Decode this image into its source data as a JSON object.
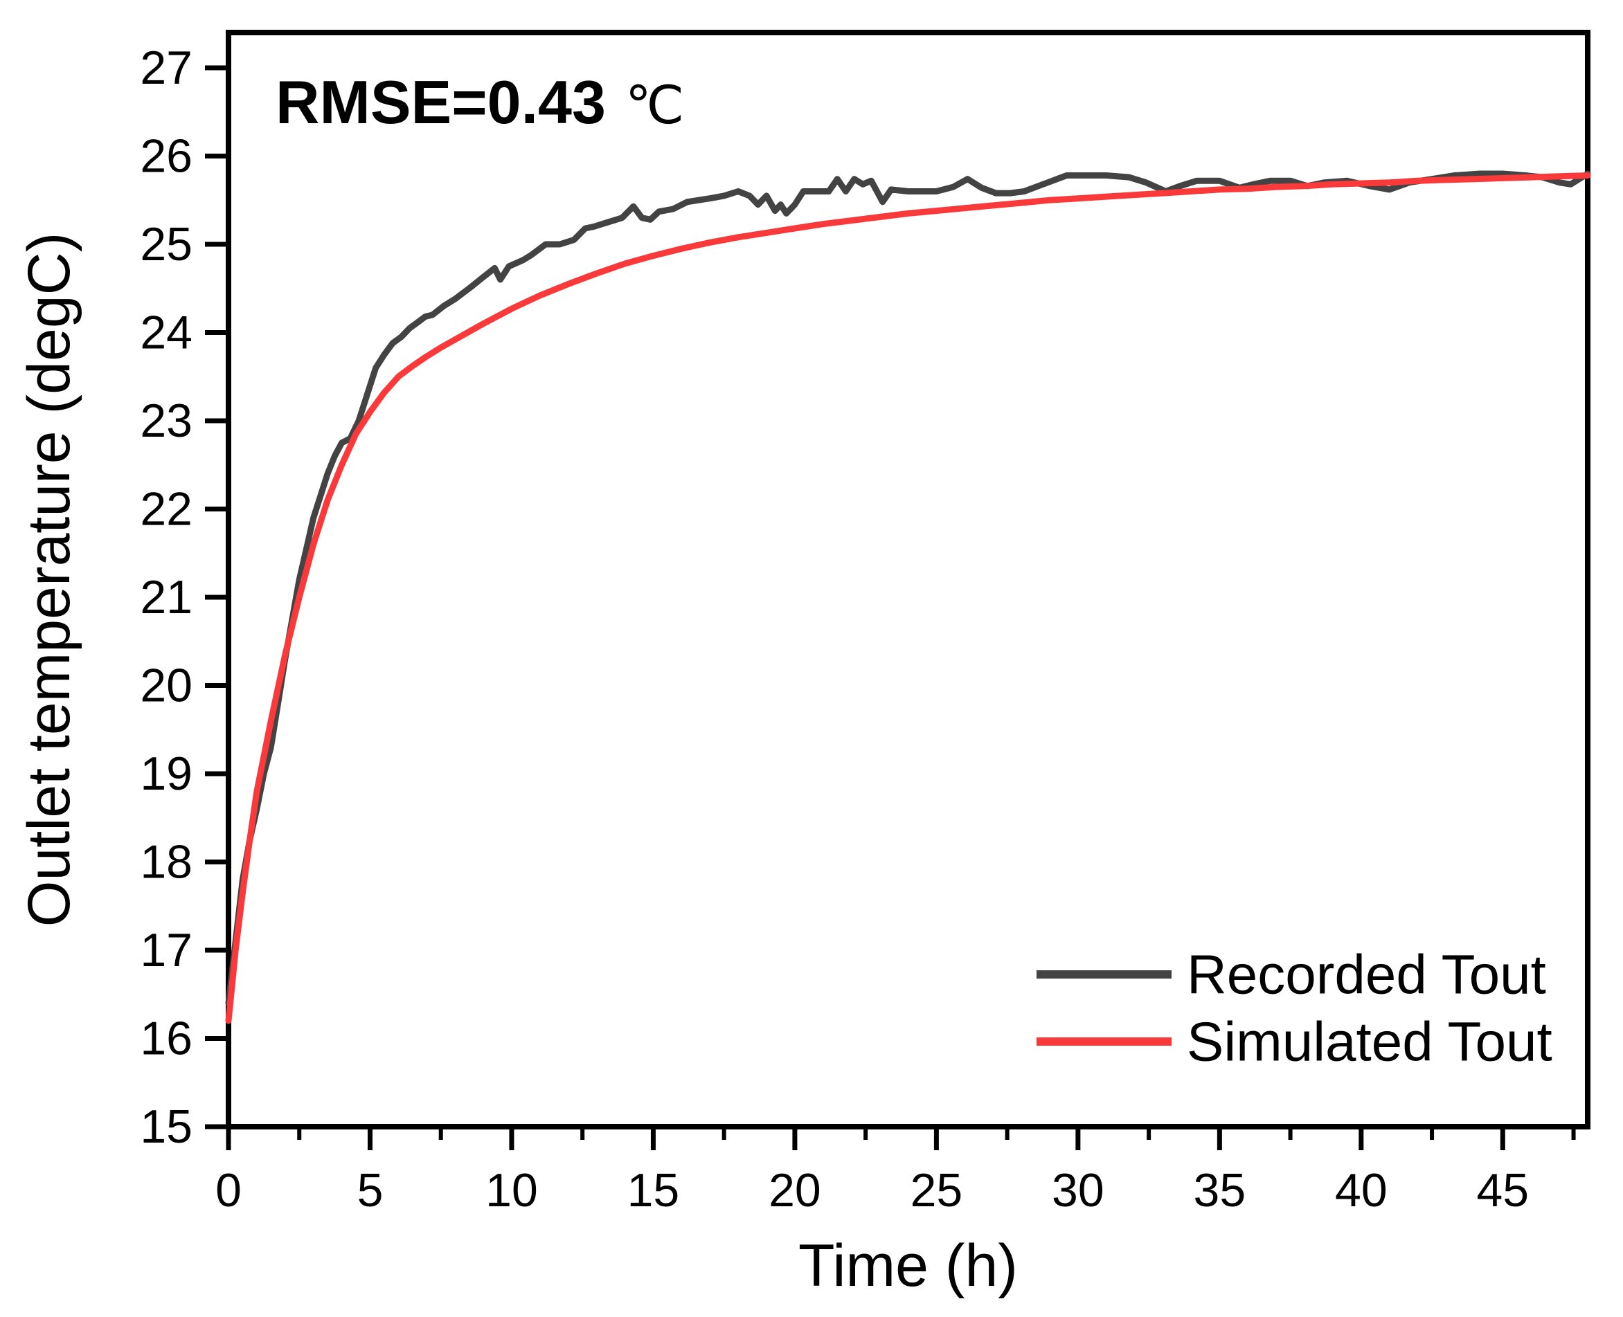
{
  "figure": {
    "annotation": {
      "rmse_label": "RMSE=0.43",
      "unit": "℃"
    },
    "colors": {
      "recorded": "#434343",
      "simulated": "#fa3a3a",
      "axis": "#000000",
      "background": "#ffffff"
    }
  },
  "chart_data": {
    "type": "line",
    "title": "",
    "xlabel": "Time (h)",
    "ylabel": "Outlet temperature (degC)",
    "xlim": [
      0,
      48
    ],
    "ylim": [
      15,
      27.4
    ],
    "grid": false,
    "legend_position": "bottom-right",
    "annotation": "RMSE=0.43 ℃",
    "x_major_ticks": [
      0,
      5,
      10,
      15,
      20,
      25,
      30,
      35,
      40,
      45
    ],
    "x_minor_ticks": [
      2.5,
      7.5,
      12.5,
      17.5,
      22.5,
      27.5,
      32.5,
      37.5,
      42.5,
      47.5
    ],
    "y_major_ticks": [
      27,
      26,
      25,
      24,
      23,
      22,
      21,
      20,
      19,
      18,
      17,
      16,
      15
    ],
    "series": [
      {
        "name": "Recorded Tout",
        "color": "#434343",
        "x": [
          0,
          0.25,
          0.5,
          0.75,
          1,
          1.25,
          1.5,
          1.75,
          2,
          2.25,
          2.5,
          2.75,
          3,
          3.25,
          3.5,
          3.75,
          4,
          4.3,
          4.6,
          4.9,
          5.2,
          5.5,
          5.8,
          6.1,
          6.4,
          6.7,
          6.95,
          7.2,
          7.6,
          8,
          8.5,
          9,
          9.4,
          9.6,
          9.9,
          10.4,
          10.7,
          11.2,
          11.7,
          12.2,
          12.6,
          12.9,
          13.4,
          13.9,
          14.3,
          14.6,
          14.9,
          15.2,
          15.7,
          16.2,
          16.6,
          17,
          17.5,
          18,
          18.4,
          18.7,
          19,
          19.3,
          19.5,
          19.7,
          20,
          20.3,
          20.8,
          21.2,
          21.5,
          21.8,
          22.1,
          22.4,
          22.7,
          23.1,
          23.4,
          24,
          24.5,
          25,
          25.6,
          26.1,
          26.6,
          27.1,
          27.6,
          28.1,
          28.6,
          29.1,
          29.6,
          30.2,
          31,
          31.8,
          32.4,
          33.1,
          33.6,
          34.2,
          35,
          35.7,
          36.2,
          36.8,
          37.5,
          38.1,
          38.7,
          39.5,
          40.3,
          41,
          41.7,
          42.5,
          43.3,
          44.2,
          45,
          45.8,
          46.4,
          47,
          47.4,
          48
        ],
        "y": [
          16.4,
          17.1,
          17.8,
          18.25,
          18.6,
          19.0,
          19.3,
          19.8,
          20.3,
          20.75,
          21.2,
          21.55,
          21.9,
          22.15,
          22.4,
          22.6,
          22.75,
          22.8,
          23.0,
          23.3,
          23.6,
          23.75,
          23.88,
          23.95,
          24.05,
          24.12,
          24.18,
          24.2,
          24.3,
          24.38,
          24.5,
          24.63,
          24.73,
          24.6,
          24.75,
          24.82,
          24.88,
          25.0,
          25.0,
          25.05,
          25.18,
          25.2,
          25.25,
          25.3,
          25.43,
          25.3,
          25.28,
          25.37,
          25.4,
          25.48,
          25.5,
          25.52,
          25.55,
          25.6,
          25.55,
          25.45,
          25.55,
          25.38,
          25.45,
          25.35,
          25.45,
          25.6,
          25.6,
          25.6,
          25.74,
          25.6,
          25.74,
          25.68,
          25.72,
          25.48,
          25.62,
          25.6,
          25.6,
          25.6,
          25.65,
          25.74,
          25.64,
          25.58,
          25.58,
          25.6,
          25.66,
          25.72,
          25.78,
          25.78,
          25.78,
          25.76,
          25.7,
          25.6,
          25.66,
          25.72,
          25.72,
          25.64,
          25.68,
          25.72,
          25.72,
          25.66,
          25.7,
          25.72,
          25.66,
          25.62,
          25.7,
          25.74,
          25.78,
          25.8,
          25.8,
          25.78,
          25.76,
          25.7,
          25.68,
          25.8
        ]
      },
      {
        "name": "Simulated Tout",
        "color": "#fa3a3a",
        "x": [
          0,
          0.25,
          0.5,
          0.75,
          1,
          1.5,
          2,
          2.5,
          3,
          3.5,
          4,
          4.5,
          5,
          5.5,
          6,
          6.5,
          7,
          7.5,
          8,
          9,
          10,
          11,
          12,
          13,
          14,
          15,
          16,
          17,
          18,
          19,
          20,
          21,
          22,
          23,
          24,
          25,
          26,
          27,
          28,
          29,
          30,
          31,
          32,
          33,
          34,
          35,
          36,
          37,
          38,
          39,
          40,
          41,
          42,
          43,
          44,
          45,
          46,
          47,
          48
        ],
        "y": [
          16.2,
          17.0,
          17.65,
          18.25,
          18.8,
          19.6,
          20.35,
          21.0,
          21.6,
          22.1,
          22.5,
          22.85,
          23.1,
          23.32,
          23.5,
          23.62,
          23.73,
          23.83,
          23.92,
          24.1,
          24.27,
          24.42,
          24.55,
          24.67,
          24.78,
          24.87,
          24.95,
          25.02,
          25.08,
          25.13,
          25.18,
          25.23,
          25.27,
          25.31,
          25.35,
          25.38,
          25.41,
          25.44,
          25.47,
          25.5,
          25.52,
          25.54,
          25.56,
          25.58,
          25.6,
          25.62,
          25.63,
          25.65,
          25.66,
          25.68,
          25.69,
          25.7,
          25.72,
          25.73,
          25.74,
          25.75,
          25.76,
          25.77,
          25.78
        ]
      }
    ]
  }
}
